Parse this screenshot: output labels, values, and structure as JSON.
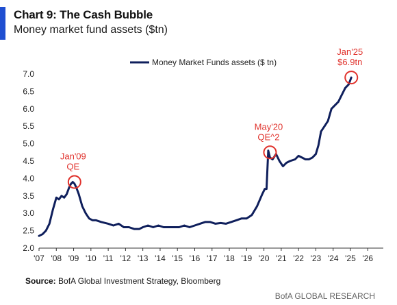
{
  "header": {
    "title": "Chart 9: The Cash Bubble",
    "subtitle": "Money market fund assets ($tn)"
  },
  "footer": {
    "source_label": "Source:",
    "source_text": "BofA Global Investment Strategy, Bloomberg",
    "brand": "BofA GLOBAL RESEARCH"
  },
  "colors": {
    "line": "#0f1f5c",
    "annotation": "#e0312b",
    "accent": "#1f4fd1",
    "axis": "#333333"
  },
  "chart_data": {
    "type": "line",
    "title": "",
    "xlabel": "",
    "ylabel": "",
    "legend": "top-center",
    "grid": false,
    "x_tick_labels": [
      "'07",
      "'08",
      "'09",
      "'10",
      "'11",
      "'12",
      "'13",
      "'14",
      "'15",
      "'16",
      "'17",
      "'18",
      "'19",
      "'20",
      "'21",
      "'22",
      "'23",
      "'24",
      "'25",
      "'26"
    ],
    "x_tick_years": [
      2007,
      2008,
      2009,
      2010,
      2011,
      2012,
      2013,
      2014,
      2015,
      2016,
      2017,
      2018,
      2019,
      2020,
      2021,
      2022,
      2023,
      2024,
      2025,
      2026
    ],
    "xlim": [
      2007,
      2026.9
    ],
    "y_tick_labels": [
      "2.0",
      "2.5",
      "3.0",
      "3.5",
      "4.0",
      "4.5",
      "5.0",
      "5.5",
      "6.0",
      "6.5",
      "7.0"
    ],
    "y_tick_values": [
      2.0,
      2.5,
      3.0,
      3.5,
      4.0,
      4.5,
      5.0,
      5.5,
      6.0,
      6.5,
      7.0
    ],
    "ylim": [
      2.0,
      7.0
    ],
    "series": [
      {
        "name": "Money Market Funds assets ($ tn)",
        "x": [
          2007.0,
          2007.2,
          2007.4,
          2007.6,
          2007.8,
          2008.0,
          2008.15,
          2008.3,
          2008.45,
          2008.6,
          2008.75,
          2008.85,
          2008.95,
          2009.05,
          2009.15,
          2009.3,
          2009.5,
          2009.7,
          2009.9,
          2010.1,
          2010.3,
          2010.6,
          2011.0,
          2011.3,
          2011.6,
          2011.9,
          2012.2,
          2012.5,
          2012.8,
          2013.0,
          2013.3,
          2013.6,
          2013.9,
          2014.2,
          2014.5,
          2014.8,
          2015.1,
          2015.4,
          2015.7,
          2016.0,
          2016.3,
          2016.6,
          2016.9,
          2017.2,
          2017.5,
          2017.8,
          2018.1,
          2018.4,
          2018.7,
          2019.0,
          2019.3,
          2019.6,
          2019.9,
          2020.05,
          2020.15,
          2020.25,
          2020.35,
          2020.5,
          2020.7,
          2020.9,
          2021.1,
          2021.3,
          2021.5,
          2021.8,
          2022.0,
          2022.2,
          2022.4,
          2022.6,
          2022.8,
          2023.0,
          2023.15,
          2023.3,
          2023.5,
          2023.7,
          2023.9,
          2024.1,
          2024.3,
          2024.5,
          2024.7,
          2024.9,
          2025.05
        ],
        "y": [
          2.35,
          2.4,
          2.5,
          2.7,
          3.1,
          3.45,
          3.4,
          3.5,
          3.45,
          3.55,
          3.75,
          3.85,
          3.9,
          3.85,
          3.75,
          3.55,
          3.2,
          3.0,
          2.85,
          2.8,
          2.8,
          2.75,
          2.7,
          2.65,
          2.7,
          2.6,
          2.6,
          2.55,
          2.55,
          2.6,
          2.65,
          2.6,
          2.65,
          2.6,
          2.6,
          2.6,
          2.6,
          2.65,
          2.6,
          2.65,
          2.7,
          2.75,
          2.75,
          2.7,
          2.72,
          2.7,
          2.75,
          2.8,
          2.85,
          2.85,
          2.95,
          3.2,
          3.55,
          3.7,
          3.7,
          4.8,
          4.6,
          4.55,
          4.7,
          4.5,
          4.35,
          4.45,
          4.5,
          4.55,
          4.65,
          4.6,
          4.55,
          4.55,
          4.6,
          4.7,
          4.95,
          5.35,
          5.5,
          5.65,
          6.0,
          6.1,
          6.2,
          6.4,
          6.6,
          6.7,
          6.9
        ]
      }
    ],
    "annotations": [
      {
        "label_lines": [
          "Jan'09",
          "QE"
        ],
        "x": 2009.05,
        "y": 3.9
      },
      {
        "label_lines": [
          "May'20",
          "QE^2"
        ],
        "x": 2020.35,
        "y": 4.75
      },
      {
        "label_lines": [
          "Jan'25",
          "$6.9tn"
        ],
        "x": 2025.05,
        "y": 6.9
      }
    ]
  }
}
